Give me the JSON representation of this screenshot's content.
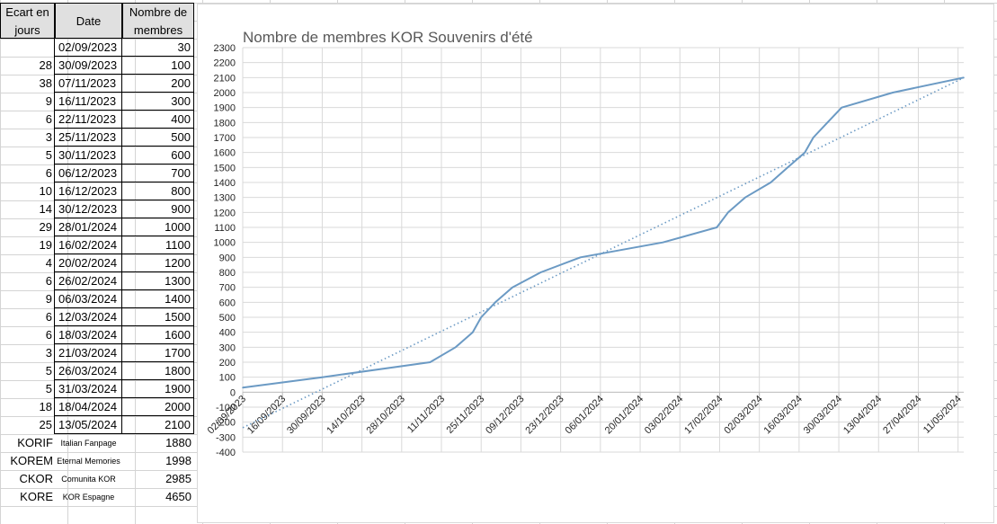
{
  "table": {
    "headers": {
      "ecart": "Ecart en jours",
      "date": "Date",
      "membres": "Nombre de membres"
    },
    "rows": [
      {
        "ecart": "",
        "date": "02/09/2023",
        "membres": "30"
      },
      {
        "ecart": "28",
        "date": "30/09/2023",
        "membres": "100"
      },
      {
        "ecart": "38",
        "date": "07/11/2023",
        "membres": "200"
      },
      {
        "ecart": "9",
        "date": "16/11/2023",
        "membres": "300"
      },
      {
        "ecart": "6",
        "date": "22/11/2023",
        "membres": "400"
      },
      {
        "ecart": "3",
        "date": "25/11/2023",
        "membres": "500"
      },
      {
        "ecart": "5",
        "date": "30/11/2023",
        "membres": "600"
      },
      {
        "ecart": "6",
        "date": "06/12/2023",
        "membres": "700"
      },
      {
        "ecart": "10",
        "date": "16/12/2023",
        "membres": "800"
      },
      {
        "ecart": "14",
        "date": "30/12/2023",
        "membres": "900"
      },
      {
        "ecart": "29",
        "date": "28/01/2024",
        "membres": "1000"
      },
      {
        "ecart": "19",
        "date": "16/02/2024",
        "membres": "1100"
      },
      {
        "ecart": "4",
        "date": "20/02/2024",
        "membres": "1200"
      },
      {
        "ecart": "6",
        "date": "26/02/2024",
        "membres": "1300"
      },
      {
        "ecart": "9",
        "date": "06/03/2024",
        "membres": "1400"
      },
      {
        "ecart": "6",
        "date": "12/03/2024",
        "membres": "1500"
      },
      {
        "ecart": "6",
        "date": "18/03/2024",
        "membres": "1600"
      },
      {
        "ecart": "3",
        "date": "21/03/2024",
        "membres": "1700"
      },
      {
        "ecart": "5",
        "date": "26/03/2024",
        "membres": "1800"
      },
      {
        "ecart": "5",
        "date": "31/03/2024",
        "membres": "1900"
      },
      {
        "ecart": "18",
        "date": "18/04/2024",
        "membres": "2000"
      },
      {
        "ecart": "25",
        "date": "13/05/2024",
        "membres": "2100"
      }
    ],
    "extra_rows": [
      {
        "code": "KORIF",
        "name": "Italian Fanpage",
        "value": "1880"
      },
      {
        "code": "KOREM",
        "name": "Eternal Memories",
        "value": "1998"
      },
      {
        "code": "CKOR",
        "name": "Comunita KOR",
        "value": "2985"
      },
      {
        "code": "KORE",
        "name": "KOR Espagne",
        "value": "4650"
      }
    ]
  },
  "chart_data": {
    "type": "line",
    "title": "Nombre de membres KOR Souvenirs d'été",
    "x": [
      "02/09/2023",
      "30/09/2023",
      "07/11/2023",
      "16/11/2023",
      "22/11/2023",
      "25/11/2023",
      "30/11/2023",
      "06/12/2023",
      "16/12/2023",
      "30/12/2023",
      "28/01/2024",
      "16/02/2024",
      "20/02/2024",
      "26/02/2024",
      "06/03/2024",
      "12/03/2024",
      "18/03/2024",
      "21/03/2024",
      "26/03/2024",
      "31/03/2024",
      "18/04/2024",
      "13/05/2024"
    ],
    "series": [
      {
        "values": [
          30,
          100,
          200,
          300,
          400,
          500,
          600,
          700,
          800,
          900,
          1000,
          1100,
          1200,
          1300,
          1400,
          1500,
          1600,
          1700,
          1800,
          1900,
          2000,
          2100
        ],
        "color": "#6b9ac4"
      }
    ],
    "trendline": {
      "style": "dotted",
      "color": "#6b9ac4",
      "type": "linear"
    },
    "ylim": [
      -400,
      2300
    ],
    "ytick_step": 100,
    "xlim": [
      "02/09/2023",
      "13/05/2024"
    ],
    "xtick_labels": [
      "02/09/2023",
      "16/09/2023",
      "30/09/2023",
      "14/10/2023",
      "28/10/2023",
      "11/11/2023",
      "25/11/2023",
      "09/12/2023",
      "23/12/2023",
      "06/01/2024",
      "20/01/2024",
      "03/02/2024",
      "17/02/2024",
      "02/03/2024",
      "16/03/2024",
      "30/03/2024",
      "13/04/2024",
      "27/04/2024",
      "11/05/2024"
    ],
    "grid": true,
    "legend": "none"
  }
}
